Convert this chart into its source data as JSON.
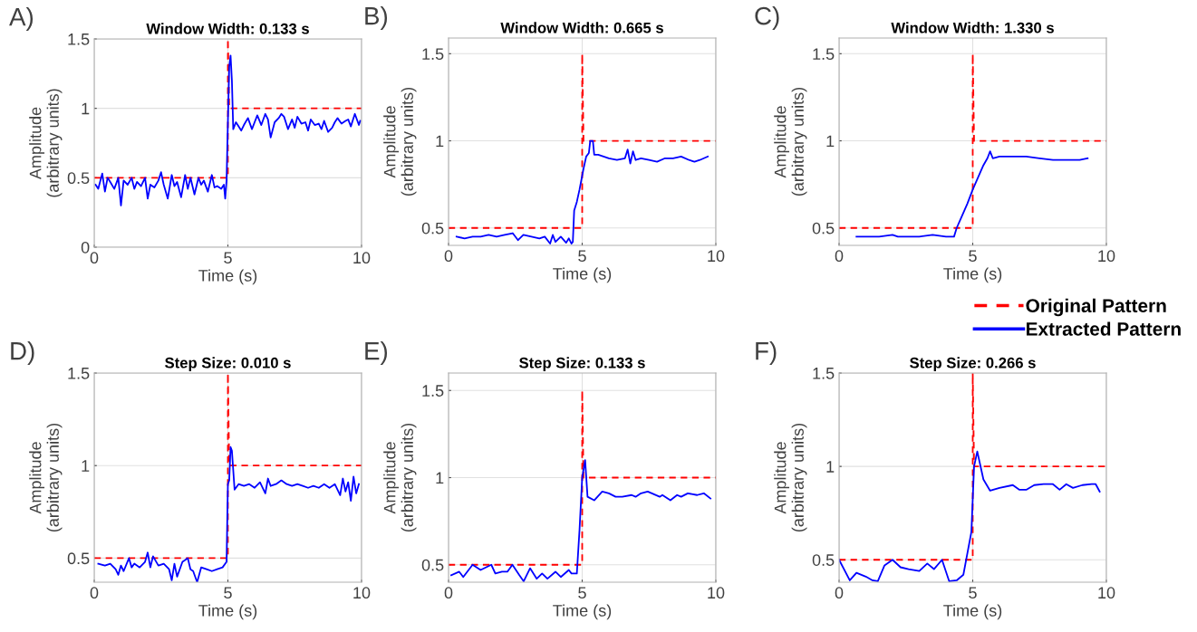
{
  "chart_data": [
    {
      "type": "line",
      "title": "Window Width: 0.133 s",
      "xlabel": "Time (s)",
      "ylabel": "Amplitude\n(arbitrary units)",
      "annotations": [
        "A)"
      ],
      "xlim": [
        0,
        10
      ],
      "xticks": [
        0,
        5,
        10
      ],
      "ylim": [
        0,
        1.5
      ],
      "yticks": [
        0,
        0.5,
        1,
        1.5
      ],
      "grid": true,
      "series": [
        {
          "color": "#ff0000",
          "line_style": "dashed",
          "x": [
            0,
            5,
            5,
            5.05,
            10
          ],
          "values": [
            0.5,
            0.5,
            1.5,
            1.0,
            1.0
          ]
        },
        {
          "color": "#0000ff",
          "line_style": "solid",
          "x": [
            0.05,
            0.15,
            0.3,
            0.4,
            0.5,
            0.6,
            0.75,
            0.9,
            1.0,
            1.1,
            1.25,
            1.4,
            1.5,
            1.6,
            1.75,
            1.9,
            2.0,
            2.1,
            2.25,
            2.4,
            2.5,
            2.6,
            2.75,
            2.9,
            3.0,
            3.1,
            3.25,
            3.4,
            3.5,
            3.6,
            3.75,
            3.9,
            4.0,
            4.1,
            4.25,
            4.4,
            4.5,
            4.6,
            4.75,
            4.85,
            4.9,
            4.95,
            5.0,
            5.05,
            5.1,
            5.15,
            5.2,
            5.3,
            5.4,
            5.5,
            5.6,
            5.75,
            5.9,
            6.0,
            6.1,
            6.25,
            6.4,
            6.5,
            6.6,
            6.75,
            6.9,
            7.0,
            7.1,
            7.25,
            7.4,
            7.5,
            7.6,
            7.75,
            7.9,
            8.0,
            8.1,
            8.25,
            8.4,
            8.5,
            8.6,
            8.75,
            8.9,
            9.0,
            9.1,
            9.25,
            9.4,
            9.5,
            9.6,
            9.75,
            9.9,
            9.95
          ],
          "values": [
            0.45,
            0.42,
            0.53,
            0.4,
            0.5,
            0.47,
            0.42,
            0.5,
            0.3,
            0.48,
            0.45,
            0.5,
            0.42,
            0.47,
            0.44,
            0.5,
            0.35,
            0.45,
            0.43,
            0.48,
            0.54,
            0.45,
            0.35,
            0.52,
            0.44,
            0.47,
            0.36,
            0.52,
            0.42,
            0.5,
            0.38,
            0.5,
            0.45,
            0.48,
            0.4,
            0.52,
            0.43,
            0.44,
            0.42,
            0.45,
            0.35,
            0.48,
            0.9,
            1.3,
            1.38,
            1.2,
            0.85,
            0.9,
            0.87,
            0.84,
            0.88,
            0.93,
            0.85,
            0.9,
            0.95,
            0.88,
            0.96,
            0.92,
            0.79,
            0.9,
            0.93,
            0.96,
            0.94,
            0.85,
            0.92,
            0.86,
            0.94,
            0.89,
            0.9,
            0.84,
            0.92,
            0.88,
            0.89,
            0.85,
            0.91,
            0.83,
            0.86,
            0.9,
            0.93,
            0.89,
            0.91,
            0.92,
            0.87,
            0.96,
            0.88,
            0.91
          ]
        }
      ]
    },
    {
      "type": "line",
      "title": "Window Width: 0.665 s",
      "xlabel": "Time (s)",
      "ylabel": "Amplitude\n(arbitrary units)",
      "annotations": [
        "B)"
      ],
      "xlim": [
        0,
        10
      ],
      "xticks": [
        0,
        5,
        10
      ],
      "ylim": [
        0.4,
        1.59
      ],
      "yticks": [
        0.5,
        1,
        1.5
      ],
      "grid": true,
      "series": [
        {
          "color": "#ff0000",
          "line_style": "dashed",
          "x": [
            0,
            5,
            5,
            5.05,
            10
          ],
          "values": [
            0.5,
            0.5,
            1.5,
            1.0,
            1.0
          ]
        },
        {
          "color": "#0000ff",
          "line_style": "solid",
          "x": [
            0.3,
            0.6,
            0.9,
            1.2,
            1.5,
            1.8,
            2.1,
            2.4,
            2.6,
            2.8,
            3.1,
            3.4,
            3.6,
            3.8,
            3.9,
            4.0,
            4.2,
            4.4,
            4.5,
            4.6,
            4.65,
            4.7,
            4.8,
            4.9,
            5.0,
            5.05,
            5.15,
            5.25,
            5.3,
            5.4,
            5.45,
            5.6,
            5.8,
            6.0,
            6.3,
            6.6,
            6.7,
            6.8,
            6.9,
            7.0,
            7.2,
            7.5,
            7.8,
            8.1,
            8.4,
            8.7,
            9.0,
            9.2,
            9.4,
            9.7
          ],
          "values": [
            0.45,
            0.44,
            0.45,
            0.45,
            0.46,
            0.45,
            0.46,
            0.47,
            0.43,
            0.46,
            0.45,
            0.44,
            0.45,
            0.41,
            0.46,
            0.42,
            0.45,
            0.415,
            0.44,
            0.41,
            0.42,
            0.6,
            0.65,
            0.72,
            0.8,
            0.84,
            0.91,
            0.93,
            1.0,
            1.0,
            0.92,
            0.92,
            0.91,
            0.9,
            0.89,
            0.9,
            0.95,
            0.87,
            0.94,
            0.89,
            0.9,
            0.89,
            0.88,
            0.9,
            0.9,
            0.91,
            0.89,
            0.88,
            0.89,
            0.91
          ]
        }
      ]
    },
    {
      "type": "line",
      "title": "Window Width: 1.330 s",
      "xlabel": "Time (s)",
      "ylabel": "Amplitude\n(arbitrary units)",
      "annotations": [
        "C)"
      ],
      "xlim": [
        0,
        10
      ],
      "xticks": [
        0,
        5,
        10
      ],
      "ylim": [
        0.4,
        1.59
      ],
      "yticks": [
        0.5,
        1,
        1.5
      ],
      "grid": true,
      "legend": "bottom right",
      "series": [
        {
          "name": "Original Pattern",
          "color": "#ff0000",
          "line_style": "dashed",
          "x": [
            0,
            5,
            5,
            5.05,
            10
          ],
          "values": [
            0.5,
            0.5,
            1.5,
            1.0,
            1.0
          ]
        },
        {
          "name": "Extracted Pattern",
          "color": "#0000ff",
          "line_style": "solid",
          "x": [
            0.65,
            1.0,
            1.5,
            2.0,
            2.2,
            2.5,
            3.0,
            3.5,
            4.0,
            4.3,
            4.4,
            4.6,
            4.8,
            5.0,
            5.2,
            5.4,
            5.55,
            5.65,
            5.75,
            6.0,
            6.5,
            7.0,
            7.5,
            8.0,
            8.5,
            9.0,
            9.3
          ],
          "values": [
            0.45,
            0.45,
            0.45,
            0.46,
            0.45,
            0.45,
            0.45,
            0.46,
            0.45,
            0.45,
            0.5,
            0.57,
            0.64,
            0.72,
            0.79,
            0.86,
            0.9,
            0.94,
            0.9,
            0.91,
            0.91,
            0.91,
            0.9,
            0.89,
            0.89,
            0.89,
            0.9
          ]
        }
      ]
    },
    {
      "type": "line",
      "title": "Step Size: 0.010 s",
      "xlabel": "Time (s)",
      "ylabel": "Amplitude\n(arbitrary units)",
      "annotations": [
        "D)"
      ],
      "xlim": [
        0,
        10
      ],
      "xticks": [
        0,
        5,
        10
      ],
      "ylim": [
        0.37,
        1.5
      ],
      "yticks": [
        0.5,
        1,
        1.5
      ],
      "grid": true,
      "series": [
        {
          "color": "#ff0000",
          "line_style": "dashed",
          "x": [
            0,
            5,
            5,
            5.05,
            10
          ],
          "values": [
            0.5,
            0.5,
            1.5,
            1.0,
            1.0
          ]
        },
        {
          "color": "#0000ff",
          "line_style": "solid",
          "x": [
            0.15,
            0.4,
            0.6,
            0.8,
            0.9,
            1.0,
            1.1,
            1.3,
            1.4,
            1.5,
            1.7,
            1.9,
            2.0,
            2.1,
            2.2,
            2.4,
            2.6,
            2.8,
            2.9,
            3.0,
            3.1,
            3.3,
            3.5,
            3.6,
            3.7,
            3.85,
            4.0,
            4.2,
            4.4,
            4.6,
            4.8,
            4.95,
            5.0,
            5.05,
            5.1,
            5.15,
            5.25,
            5.4,
            5.6,
            5.8,
            6.0,
            6.2,
            6.4,
            6.5,
            6.6,
            6.8,
            7.0,
            7.2,
            7.4,
            7.6,
            7.8,
            8.0,
            8.2,
            8.4,
            8.6,
            8.8,
            9.0,
            9.2,
            9.3,
            9.4,
            9.5,
            9.6,
            9.7,
            9.8,
            9.9
          ],
          "values": [
            0.47,
            0.46,
            0.47,
            0.44,
            0.41,
            0.46,
            0.43,
            0.5,
            0.45,
            0.47,
            0.45,
            0.48,
            0.53,
            0.45,
            0.51,
            0.46,
            0.47,
            0.44,
            0.38,
            0.47,
            0.4,
            0.48,
            0.5,
            0.44,
            0.43,
            0.37,
            0.45,
            0.44,
            0.43,
            0.44,
            0.45,
            0.48,
            0.9,
            0.92,
            1.1,
            1.08,
            0.87,
            0.9,
            0.89,
            0.9,
            0.88,
            0.91,
            0.85,
            0.93,
            0.89,
            0.9,
            0.92,
            0.9,
            0.89,
            0.9,
            0.89,
            0.88,
            0.89,
            0.88,
            0.9,
            0.88,
            0.9,
            0.84,
            0.93,
            0.86,
            0.91,
            0.81,
            0.94,
            0.85,
            0.9
          ]
        }
      ]
    },
    {
      "type": "line",
      "title": "Step Size: 0.133 s",
      "xlabel": "Time (s)",
      "ylabel": "Amplitude\n(arbitrary units)",
      "annotations": [
        "E)"
      ],
      "xlim": [
        0,
        10
      ],
      "xticks": [
        0,
        5,
        10
      ],
      "ylim": [
        0.4,
        1.6
      ],
      "yticks": [
        0.5,
        1,
        1.5
      ],
      "grid": true,
      "series": [
        {
          "color": "#ff0000",
          "line_style": "dashed",
          "x": [
            0,
            5,
            5,
            5.05,
            10
          ],
          "values": [
            0.5,
            0.5,
            1.5,
            1.0,
            1.0
          ]
        },
        {
          "color": "#0000ff",
          "line_style": "solid",
          "x": [
            0.1,
            0.4,
            0.55,
            0.9,
            1.2,
            1.6,
            1.75,
            2.0,
            2.2,
            2.39,
            2.65,
            2.81,
            3.05,
            3.3,
            3.5,
            3.7,
            4.0,
            4.2,
            4.5,
            4.6,
            4.8,
            4.9,
            5.0,
            5.11,
            5.2,
            5.45,
            5.75,
            6.0,
            6.25,
            6.5,
            6.85,
            7.0,
            7.2,
            7.45,
            7.9,
            8.0,
            8.3,
            8.55,
            8.7,
            8.95,
            9.3,
            9.55,
            9.8
          ],
          "values": [
            0.44,
            0.46,
            0.43,
            0.5,
            0.47,
            0.5,
            0.45,
            0.46,
            0.46,
            0.5,
            0.44,
            0.405,
            0.48,
            0.42,
            0.45,
            0.42,
            0.46,
            0.43,
            0.47,
            0.45,
            0.45,
            0.7,
            1.0,
            1.1,
            0.89,
            0.87,
            0.92,
            0.91,
            0.89,
            0.89,
            0.9,
            0.89,
            0.91,
            0.92,
            0.89,
            0.9,
            0.87,
            0.9,
            0.89,
            0.91,
            0.9,
            0.91,
            0.88
          ]
        }
      ]
    },
    {
      "type": "line",
      "title": "Step Size: 0.266 s",
      "xlabel": "Time (s)",
      "ylabel": "Amplitude\n(arbitrary units)",
      "annotations": [
        "F)"
      ],
      "xlim": [
        0,
        10
      ],
      "xticks": [
        0,
        5,
        10
      ],
      "ylim": [
        0.38,
        1.5
      ],
      "yticks": [
        0.5,
        1,
        1.5
      ],
      "grid": true,
      "series": [
        {
          "color": "#ff0000",
          "line_style": "dashed",
          "x": [
            0,
            5,
            5,
            5.05,
            10
          ],
          "values": [
            0.5,
            0.5,
            1.5,
            1.0,
            1.0
          ]
        },
        {
          "color": "#0000ff",
          "line_style": "solid",
          "x": [
            0,
            0.4,
            0.65,
            1.0,
            1.25,
            1.45,
            1.7,
            2.0,
            2.3,
            2.6,
            3.0,
            3.3,
            3.55,
            3.85,
            4.12,
            4.4,
            4.65,
            4.95,
            5.05,
            5.17,
            5.4,
            5.65,
            6.0,
            6.5,
            6.75,
            7.0,
            7.3,
            7.65,
            8.0,
            8.25,
            8.5,
            8.75,
            9.1,
            9.45,
            9.6,
            9.75
          ],
          "values": [
            0.5,
            0.39,
            0.43,
            0.41,
            0.39,
            0.385,
            0.47,
            0.5,
            0.46,
            0.45,
            0.44,
            0.48,
            0.45,
            0.5,
            0.385,
            0.39,
            0.42,
            0.65,
            1.0,
            1.08,
            0.93,
            0.87,
            0.885,
            0.9,
            0.875,
            0.875,
            0.9,
            0.905,
            0.905,
            0.875,
            0.905,
            0.885,
            0.9,
            0.905,
            0.905,
            0.865
          ]
        }
      ]
    }
  ]
}
